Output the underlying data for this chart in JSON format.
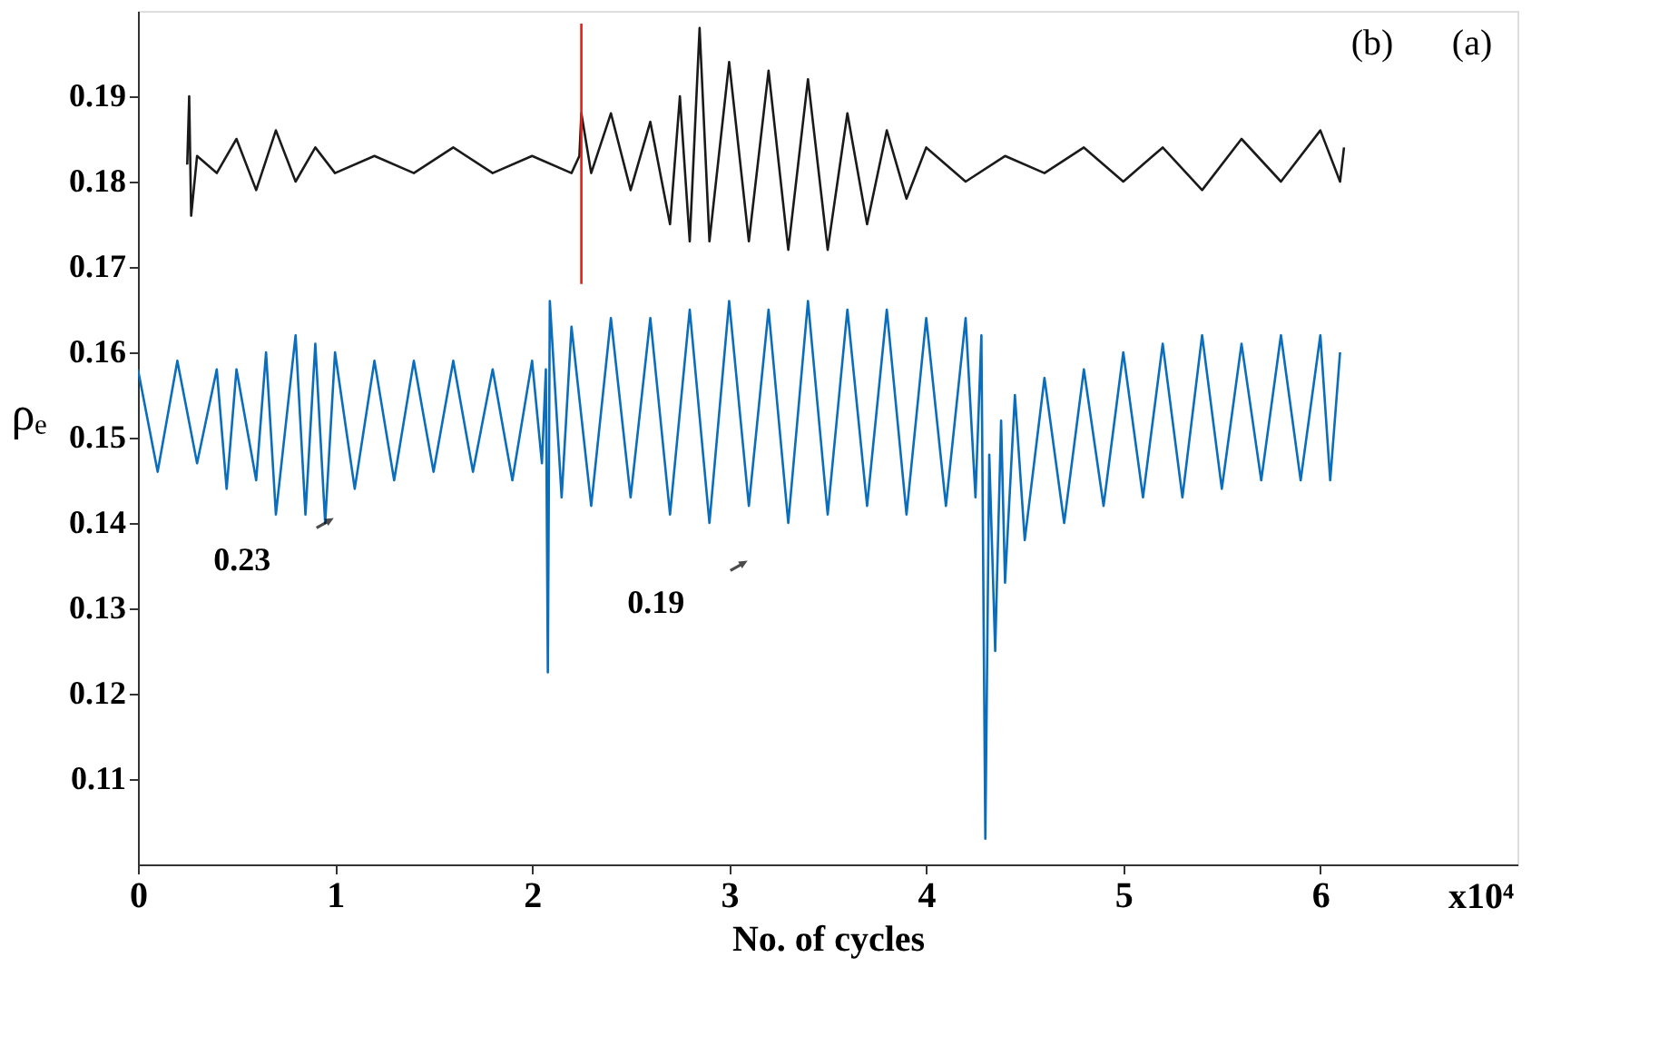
{
  "chart_data": {
    "type": "line",
    "xlabel": "No. of cycles",
    "ylabel": "ρₑ",
    "xlim": [
      0,
      7
    ],
    "xticks": [
      0,
      1,
      2,
      3,
      4,
      5,
      6
    ],
    "ylim": [
      0.1,
      0.2
    ],
    "yticks": [
      0.11,
      0.12,
      0.13,
      0.14,
      0.15,
      0.16,
      0.17,
      0.18,
      0.19
    ],
    "grid": false,
    "marker": "none",
    "line_style": "solid",
    "annotations": [
      "(a)",
      "(b)",
      "x10⁴",
      {
        "text": "0.23",
        "x": 0.95,
        "y": 0.14
      },
      {
        "text": "0.19",
        "x": 3.05,
        "y": 0.135
      }
    ],
    "series": [
      {
        "color": "#0a6ebd",
        "x": [
          0,
          0.1,
          0.2,
          0.3,
          0.4,
          0.45,
          0.5,
          0.6,
          0.65,
          0.7,
          0.8,
          0.85,
          0.9,
          0.95,
          1.0,
          1.1,
          1.2,
          1.3,
          1.4,
          1.5,
          1.6,
          1.7,
          1.8,
          1.9,
          2.0,
          2.05,
          2.07,
          2.08,
          2.09,
          2.15,
          2.2,
          2.3,
          2.4,
          2.5,
          2.6,
          2.7,
          2.8,
          2.9,
          3.0,
          3.1,
          3.2,
          3.3,
          3.4,
          3.5,
          3.6,
          3.7,
          3.8,
          3.9,
          4.0,
          4.1,
          4.2,
          4.25,
          4.28,
          4.3,
          4.32,
          4.35,
          4.38,
          4.4,
          4.45,
          4.5,
          4.6,
          4.7,
          4.8,
          4.9,
          5.0,
          5.1,
          5.2,
          5.3,
          5.4,
          5.5,
          5.6,
          5.7,
          5.8,
          5.9,
          6.0,
          6.05,
          6.1
        ],
        "values": [
          0.158,
          0.146,
          0.159,
          0.147,
          0.158,
          0.144,
          0.158,
          0.145,
          0.16,
          0.141,
          0.162,
          0.141,
          0.161,
          0.14,
          0.16,
          0.144,
          0.159,
          0.145,
          0.159,
          0.146,
          0.159,
          0.146,
          0.158,
          0.145,
          0.159,
          0.147,
          0.158,
          0.1225,
          0.166,
          0.143,
          0.163,
          0.142,
          0.164,
          0.143,
          0.164,
          0.141,
          0.165,
          0.14,
          0.166,
          0.142,
          0.165,
          0.14,
          0.166,
          0.141,
          0.165,
          0.142,
          0.165,
          0.141,
          0.164,
          0.142,
          0.164,
          0.143,
          0.162,
          0.103,
          0.148,
          0.125,
          0.152,
          0.133,
          0.155,
          0.138,
          0.157,
          0.14,
          0.158,
          0.142,
          0.16,
          0.143,
          0.161,
          0.143,
          0.162,
          0.144,
          0.161,
          0.145,
          0.162,
          0.145,
          0.162,
          0.145,
          0.16
        ]
      },
      {
        "color": "#1a1a1a",
        "x": [
          0.25,
          0.26,
          0.27,
          0.3,
          0.4,
          0.5,
          0.6,
          0.7,
          0.8,
          0.9,
          1.0,
          1.2,
          1.4,
          1.6,
          1.8,
          2.0,
          2.2,
          2.24,
          2.25,
          2.3,
          2.4,
          2.5,
          2.6,
          2.7,
          2.75,
          2.8,
          2.85,
          2.9,
          3.0,
          3.1,
          3.2,
          3.3,
          3.4,
          3.5,
          3.6,
          3.7,
          3.8,
          3.9,
          4.0,
          4.2,
          4.4,
          4.6,
          4.8,
          5.0,
          5.2,
          5.4,
          5.6,
          5.8,
          6.0,
          6.1,
          6.12
        ],
        "values": [
          0.182,
          0.19,
          0.176,
          0.183,
          0.181,
          0.185,
          0.179,
          0.186,
          0.18,
          0.184,
          0.181,
          0.183,
          0.181,
          0.184,
          0.181,
          0.183,
          0.181,
          0.183,
          0.188,
          0.181,
          0.188,
          0.179,
          0.187,
          0.175,
          0.19,
          0.173,
          0.198,
          0.173,
          0.194,
          0.173,
          0.193,
          0.172,
          0.192,
          0.172,
          0.188,
          0.175,
          0.186,
          0.178,
          0.184,
          0.18,
          0.183,
          0.181,
          0.184,
          0.18,
          0.184,
          0.179,
          0.185,
          0.18,
          0.186,
          0.18,
          0.184
        ]
      },
      {
        "color": "#e0201b",
        "x": [
          2.25,
          2.25
        ],
        "values": [
          0.1985,
          0.168
        ]
      }
    ]
  }
}
